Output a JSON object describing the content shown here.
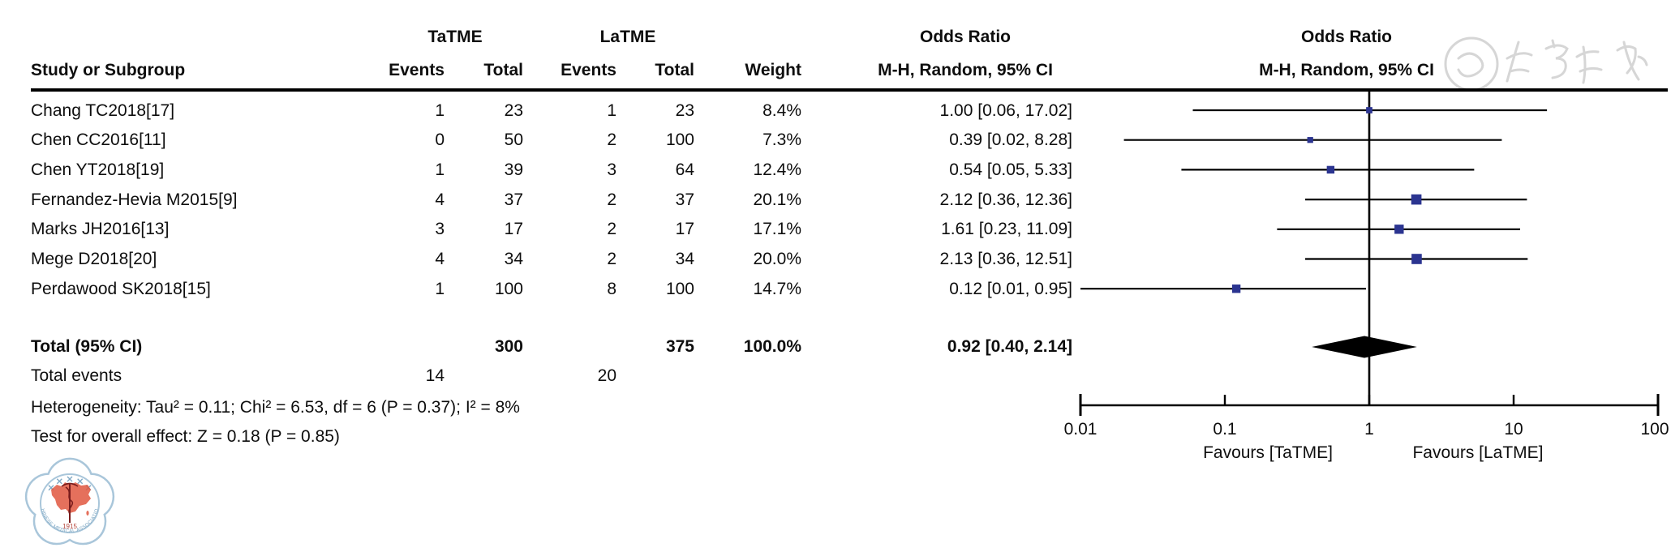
{
  "table": {
    "group1": "TaTME",
    "group2": "LaTME",
    "col_study": "Study or Subgroup",
    "col_events1": "Events",
    "col_total1": "Total",
    "col_events2": "Events",
    "col_total2": "Total",
    "col_weight": "Weight",
    "or_title": "Odds Ratio",
    "or_subtitle": "M-H, Random, 95% CI",
    "plot_title": "Odds Ratio",
    "plot_subtitle": "M-H, Random, 95% CI",
    "total_row": {
      "label": "Total (95% CI)",
      "tatme_total": "300",
      "latme_total": "375",
      "weight": "100.0%",
      "or_ci": "0.92 [0.40, 2.14]"
    },
    "total_events_row": {
      "label": "Total events",
      "tatme_events": "14",
      "latme_events": "20"
    },
    "heterogeneity": "Heterogeneity: Tau² = 0.11; Chi² = 6.53, df = 6 (P = 0.37); I² = 8%",
    "overall_effect": "Test for overall effect: Z = 0.18 (P = 0.85)"
  },
  "chart_data": {
    "type": "forest",
    "x_scale": "log",
    "x_min": 0.01,
    "x_max": 100,
    "null_line": 1,
    "x_ticks": [
      "0.01",
      "0.1",
      "1",
      "10",
      "100"
    ],
    "favours_left": "Favours [TaTME]",
    "favours_right": "Favours [LaTME]",
    "marker_color": "#2b3490",
    "line_color": "#000000",
    "diamond_color": "#000000",
    "studies": [
      {
        "name": "Chang TC2018[17]",
        "tatme_events": "1",
        "tatme_total": "23",
        "latme_events": "1",
        "latme_total": "23",
        "weight": "8.4%",
        "weight_pct": 8.4,
        "or": 1.0,
        "ci_low": 0.06,
        "ci_high": 17.02,
        "or_ci_text": "1.00 [0.06, 17.02]"
      },
      {
        "name": "Chen CC2016[11]",
        "tatme_events": "0",
        "tatme_total": "50",
        "latme_events": "2",
        "latme_total": "100",
        "weight": "7.3%",
        "weight_pct": 7.3,
        "or": 0.39,
        "ci_low": 0.02,
        "ci_high": 8.28,
        "or_ci_text": "0.39 [0.02, 8.28]"
      },
      {
        "name": "Chen YT2018[19]",
        "tatme_events": "1",
        "tatme_total": "39",
        "latme_events": "3",
        "latme_total": "64",
        "weight": "12.4%",
        "weight_pct": 12.4,
        "or": 0.54,
        "ci_low": 0.05,
        "ci_high": 5.33,
        "or_ci_text": "0.54 [0.05, 5.33]"
      },
      {
        "name": "Fernandez-Hevia M2015[9]",
        "tatme_events": "4",
        "tatme_total": "37",
        "latme_events": "2",
        "latme_total": "37",
        "weight": "20.1%",
        "weight_pct": 20.1,
        "or": 2.12,
        "ci_low": 0.36,
        "ci_high": 12.36,
        "or_ci_text": "2.12 [0.36, 12.36]"
      },
      {
        "name": "Marks JH2016[13]",
        "tatme_events": "3",
        "tatme_total": "17",
        "latme_events": "2",
        "latme_total": "17",
        "weight": "17.1%",
        "weight_pct": 17.1,
        "or": 1.61,
        "ci_low": 0.23,
        "ci_high": 11.09,
        "or_ci_text": "1.61 [0.23, 11.09]"
      },
      {
        "name": "Mege D2018[20]",
        "tatme_events": "4",
        "tatme_total": "34",
        "latme_events": "2",
        "latme_total": "34",
        "weight": "20.0%",
        "weight_pct": 20.0,
        "or": 2.13,
        "ci_low": 0.36,
        "ci_high": 12.51,
        "or_ci_text": "2.13 [0.36, 12.51]"
      },
      {
        "name": "Perdawood SK2018[15]",
        "tatme_events": "1",
        "tatme_total": "100",
        "latme_events": "8",
        "latme_total": "100",
        "weight": "14.7%",
        "weight_pct": 14.7,
        "or": 0.12,
        "ci_low": 0.01,
        "ci_high": 0.95,
        "or_ci_text": "0.12 [0.01, 0.95]"
      }
    ],
    "total_diamond": {
      "or": 0.92,
      "ci_low": 0.4,
      "ci_high": 2.14
    }
  },
  "watermarks": {
    "logo_bottom_left": {
      "name": "chinese-medical-association-logo",
      "arc_text": "CHINESE MEDICAL ASSOCIATION",
      "year": "1915",
      "outline_color": "#a9c6da",
      "map_color": "#e0573f",
      "text_color": "#7fa8c4"
    },
    "stamp_top_right": {
      "name": "faint-calligraphy-watermark",
      "color": "#d6d6d6"
    }
  }
}
